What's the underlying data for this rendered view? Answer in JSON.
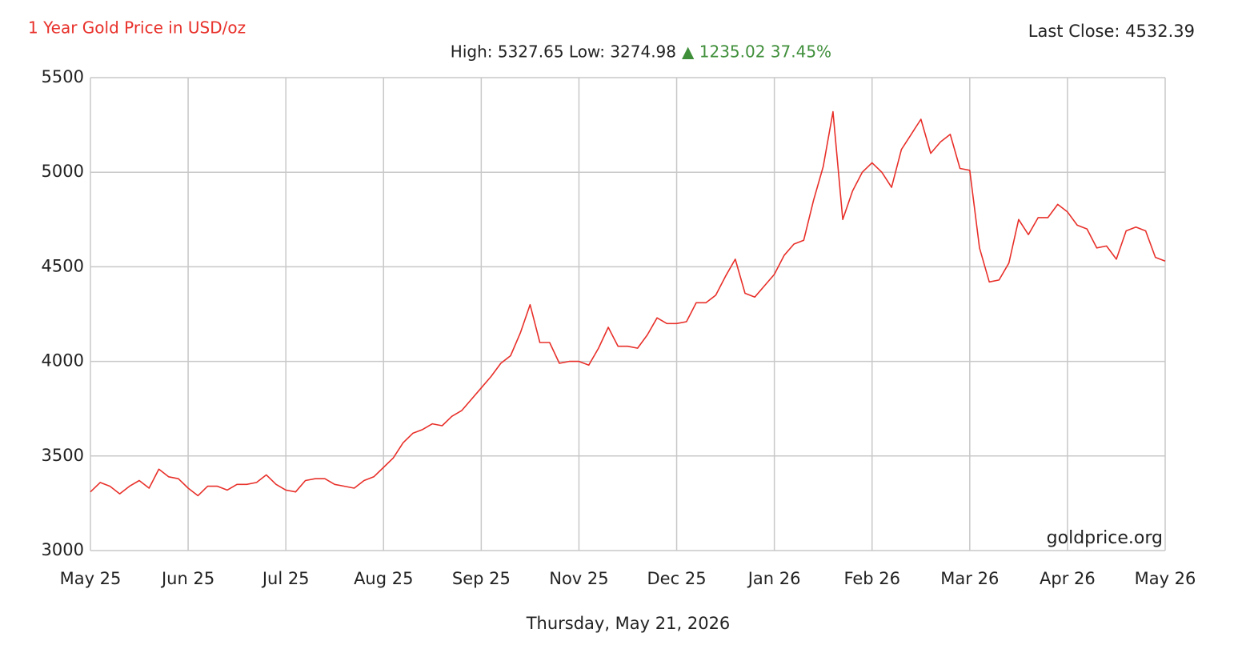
{
  "chart_data": {
    "type": "line",
    "title": "1 Year Gold Price in USD/oz",
    "last_close": "Last Close: 4532.39",
    "stats": "High: 5327.65 Low: 3274.98",
    "change": "▲ 1235.02 37.45%",
    "watermark": "goldprice.org",
    "date": "Thursday, May 21, 2026",
    "color": "#e8302a",
    "values": [
      3310,
      3360,
      3340,
      3300,
      3340,
      3370,
      3330,
      3430,
      3390,
      3380,
      3330,
      3290,
      3340,
      3340,
      3320,
      3350,
      3350,
      3360,
      3400,
      3350,
      3320,
      3310,
      3370,
      3380,
      3380,
      3350,
      3340,
      3330,
      3370,
      3390,
      3440,
      3490,
      3570,
      3620,
      3640,
      3670,
      3660,
      3710,
      3740,
      3800,
      3860,
      3920,
      3990,
      4030,
      4150,
      4300,
      4100,
      4100,
      3990,
      4000,
      4000,
      3980,
      4070,
      4180,
      4080,
      4080,
      4070,
      4140,
      4230,
      4200,
      4200,
      4210,
      4310,
      4310,
      4350,
      4450,
      4540,
      4360,
      4340,
      4400,
      4460,
      4560,
      4620,
      4640,
      4850,
      5030,
      5320,
      4750,
      4900,
      5000,
      5050,
      5000,
      4920,
      5120,
      5200,
      5280,
      5100,
      5160,
      5200,
      5020,
      5010,
      4600,
      4420,
      4430,
      4520,
      4750,
      4670,
      4760,
      4760,
      4830,
      4790,
      4720,
      4700,
      4600,
      4610,
      4540,
      4690,
      4710,
      4690,
      4550,
      4530
    ],
    "xlim": [
      0,
      110
    ],
    "xticks": [
      {
        "value": 0,
        "label": "May 25"
      },
      {
        "value": 10,
        "label": "Jun 25"
      },
      {
        "value": 20,
        "label": "Jul 25"
      },
      {
        "value": 30,
        "label": "Aug 25"
      },
      {
        "value": 40,
        "label": "Sep 25"
      },
      {
        "value": 50,
        "label": "Nov 25"
      },
      {
        "value": 60,
        "label": "Dec 25"
      },
      {
        "value": 70,
        "label": "Jan 26"
      },
      {
        "value": 80,
        "label": "Feb 26"
      },
      {
        "value": 90,
        "label": "Mar 26"
      },
      {
        "value": 100,
        "label": "Apr 26"
      },
      {
        "value": 110,
        "label": "May 26"
      }
    ],
    "ylim": [
      3000,
      5500
    ],
    "yticks": [
      3000,
      3500,
      4000,
      4500,
      5000,
      5500
    ],
    "grid": true
  }
}
